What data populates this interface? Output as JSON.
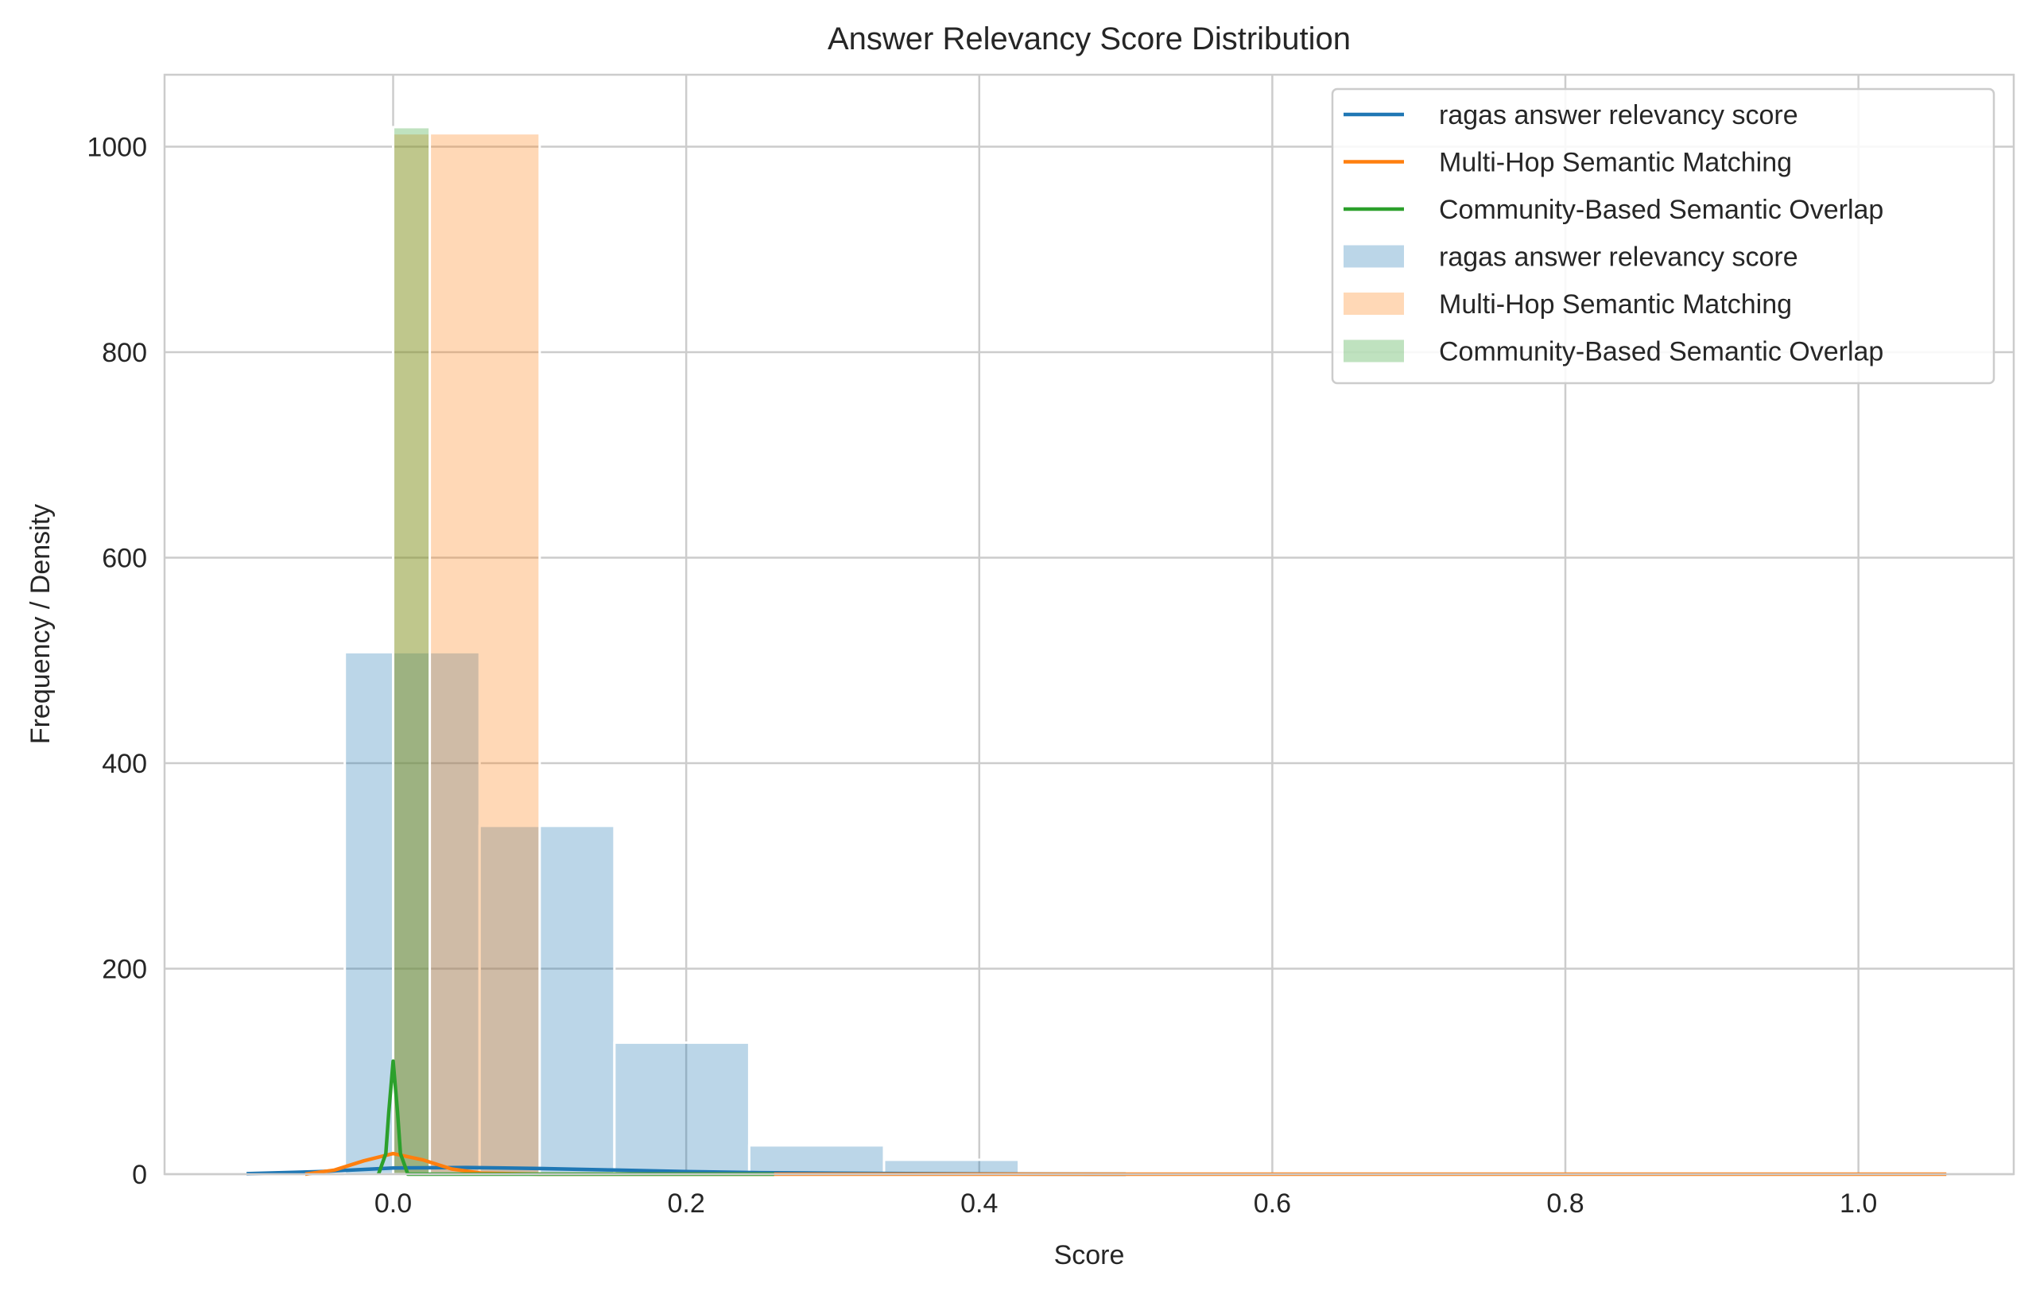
{
  "chart_data": {
    "type": "bar",
    "title": "Answer Relevancy Score Distribution",
    "xlabel": "Score",
    "ylabel": "Frequency / Density",
    "xlim": [
      -0.156,
      1.106
    ],
    "ylim": [
      0,
      1070
    ],
    "x_ticks": [
      0.0,
      0.2,
      0.4,
      0.6,
      0.8,
      1.0
    ],
    "x_tick_labels": [
      "0.0",
      "0.2",
      "0.4",
      "0.6",
      "0.8",
      "1.0"
    ],
    "y_ticks": [
      0,
      200,
      400,
      600,
      800,
      1000
    ],
    "y_tick_labels": [
      "0",
      "200",
      "400",
      "600",
      "800",
      "1000"
    ],
    "grid": true,
    "legend_position": "top-right",
    "legend": {
      "lines": [
        "ragas answer relevancy score",
        "Multi-Hop Semantic Matching",
        "Community-Based Semantic Overlap"
      ],
      "patches": [
        "ragas answer relevancy score",
        "Multi-Hop Semantic Matching",
        "Community-Based Semantic Overlap"
      ]
    },
    "colors": {
      "ragas answer relevancy score": "#1f77b4",
      "Multi-Hop Semantic Matching": "#ff7f0e",
      "Community-Based Semantic Overlap": "#2ca02c"
    },
    "histograms": [
      {
        "name": "ragas answer relevancy score",
        "bins": [
          {
            "x0": -0.033,
            "x1": 0.059,
            "count": 508
          },
          {
            "x0": 0.059,
            "x1": 0.151,
            "count": 339
          },
          {
            "x0": 0.151,
            "x1": 0.243,
            "count": 128
          },
          {
            "x0": 0.243,
            "x1": 0.335,
            "count": 28
          },
          {
            "x0": 0.335,
            "x1": 0.427,
            "count": 14
          }
        ]
      },
      {
        "name": "Multi-Hop Semantic Matching",
        "bins": [
          {
            "x0": 0.0,
            "x1": 0.1,
            "count": 1013
          },
          {
            "x0": 0.1,
            "x1": 1.0,
            "count": 0
          }
        ]
      },
      {
        "name": "Community-Based Semantic Overlap",
        "bins": [
          {
            "x0": 0.0,
            "x1": 0.025,
            "count": 1019
          }
        ]
      }
    ],
    "kde_lines": [
      {
        "name": "ragas answer relevancy score",
        "x": [
          -0.1,
          -0.05,
          0.0,
          0.05,
          0.1,
          0.15,
          0.2,
          0.25,
          0.3,
          0.35,
          0.4,
          0.45,
          0.5
        ],
        "y": [
          0.5,
          2.5,
          6.0,
          6.5,
          5.5,
          4.0,
          2.5,
          1.5,
          1.0,
          0.6,
          0.3,
          0.1,
          0.0
        ]
      },
      {
        "name": "Multi-Hop Semantic Matching",
        "x": [
          -0.06,
          -0.04,
          -0.02,
          0.0,
          0.02,
          0.04,
          0.06,
          0.1,
          0.3,
          0.6,
          0.9,
          1.06
        ],
        "y": [
          0.0,
          4.0,
          13.0,
          20.0,
          14.0,
          5.0,
          1.0,
          0.0,
          0.0,
          0.0,
          0.0,
          0.0
        ]
      },
      {
        "name": "Community-Based Semantic Overlap",
        "x": [
          -0.01,
          -0.005,
          -0.003,
          0.0,
          0.003,
          0.005,
          0.01,
          0.03,
          0.1,
          0.2,
          0.26
        ],
        "y": [
          0.0,
          20.0,
          60.0,
          110.0,
          60.0,
          20.0,
          0.0,
          0.0,
          0.0,
          0.0,
          0.0
        ]
      }
    ]
  }
}
